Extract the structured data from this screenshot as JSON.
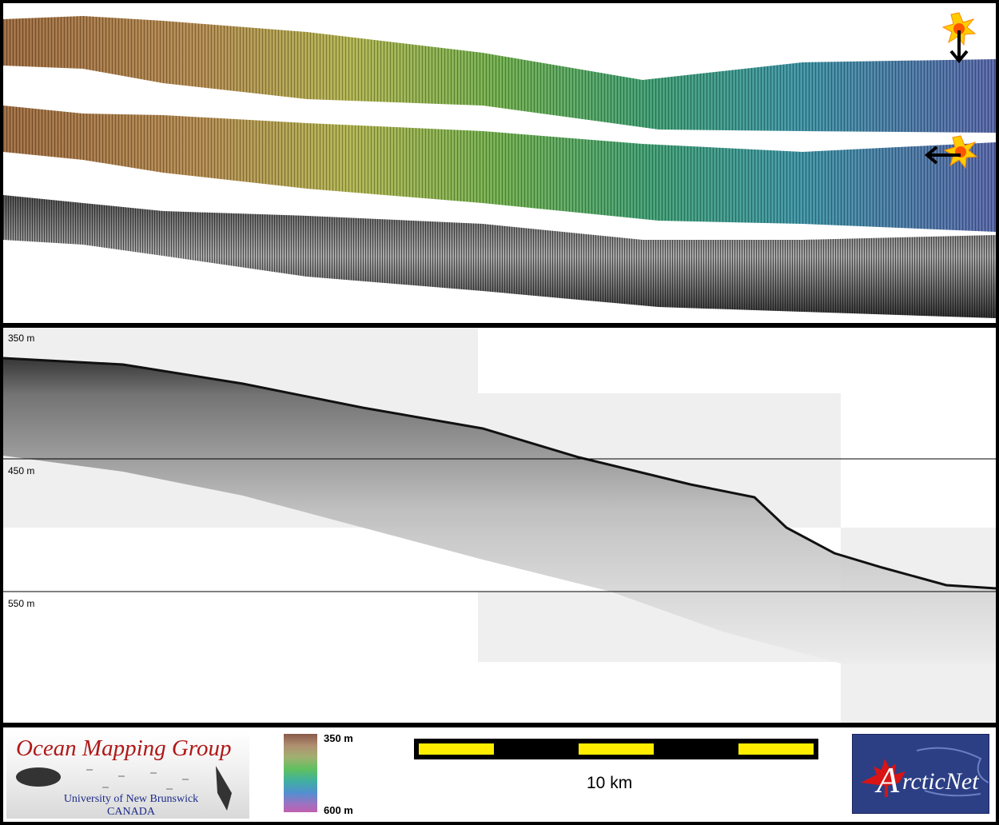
{
  "profile": {
    "depth_labels": [
      "350 m",
      "450 m",
      "550 m"
    ]
  },
  "colorbar": {
    "top_label": "350 m",
    "bottom_label": "600 m"
  },
  "scale_bar": {
    "label": "10 km"
  },
  "logos": {
    "omg_title": "Ocean Mapping Group",
    "omg_line1": "University of New Brunswick",
    "omg_line2": "CANADA",
    "arcticnet_initial": "A",
    "arcticnet_rest": "rcticNet"
  },
  "icons": {
    "sun_top": "sun-illumination-icon",
    "sun_mid": "sun-illumination-icon",
    "arrow_down": "arrow-down-icon",
    "arrow_left": "arrow-left-icon",
    "maple_leaf": "maple-leaf-icon"
  },
  "colors": {
    "scale_yellow": "#ffee00",
    "omg_red": "#b01818",
    "arctic_blue": "#2c3f85"
  }
}
